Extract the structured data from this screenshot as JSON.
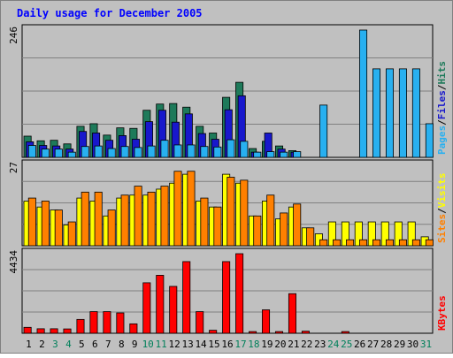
{
  "chart_data": [
    {
      "type": "bar",
      "title": "Daily usage for December 2005",
      "panel": "hits-files-pages",
      "y_max_label": "246",
      "legend": [
        "Pages",
        "Files",
        "Hits"
      ],
      "legend_separator": "/",
      "days": [
        "1",
        "2",
        "3",
        "4",
        "5",
        "6",
        "7",
        "8",
        "9",
        "10",
        "11",
        "12",
        "13",
        "14",
        "15",
        "16",
        "17",
        "18",
        "19",
        "20",
        "21",
        "22",
        "23",
        "24",
        "25",
        "26",
        "27",
        "28",
        "29",
        "30",
        "31"
      ],
      "ylim": [
        0,
        246
      ],
      "series": [
        {
          "name": "Hits",
          "color": "#1e7a5a",
          "values": [
            41,
            32,
            33,
            26,
            60,
            65,
            43,
            57,
            56,
            91,
            103,
            104,
            97,
            60,
            47,
            116,
            145,
            17,
            31,
            22,
            13,
            0,
            0,
            0,
            0,
            0,
            0,
            0,
            0,
            0,
            0
          ]
        },
        {
          "name": "Files",
          "color": "#1818cc",
          "values": [
            30,
            23,
            22,
            16,
            50,
            47,
            33,
            42,
            35,
            69,
            91,
            68,
            84,
            46,
            35,
            92,
            119,
            10,
            47,
            16,
            10,
            0,
            0,
            0,
            0,
            0,
            0,
            0,
            0,
            0,
            0
          ]
        },
        {
          "name": "Pages",
          "color": "#28b0f0",
          "values": [
            23,
            16,
            16,
            10,
            21,
            22,
            17,
            21,
            19,
            22,
            33,
            24,
            24,
            21,
            20,
            34,
            31,
            10,
            11,
            10,
            11,
            0,
            101,
            0,
            0,
            246,
            171,
            171,
            171,
            171,
            65
          ]
        }
      ],
      "weekend_days": [
        "3",
        "4",
        "10",
        "11",
        "17",
        "18",
        "24",
        "25",
        "31"
      ]
    },
    {
      "type": "bar",
      "panel": "visits-sites",
      "y_max_label": "27",
      "legend": [
        "Sites",
        "Visits"
      ],
      "legend_separator": "/",
      "ylim": [
        0,
        27
      ],
      "series": [
        {
          "name": "Visits",
          "color": "#ffff00",
          "values": [
            15,
            13,
            12,
            7,
            16,
            15,
            10,
            16,
            17,
            17,
            19,
            21,
            24,
            15,
            13,
            24,
            21,
            10,
            15,
            9,
            13,
            6,
            4,
            8,
            8,
            8,
            8,
            8,
            8,
            8,
            3
          ]
        },
        {
          "name": "Sites",
          "color": "#ff8000",
          "values": [
            16,
            15,
            12,
            8,
            18,
            18,
            12,
            17,
            20,
            18,
            20,
            25,
            25,
            16,
            13,
            23,
            22,
            10,
            17,
            11,
            14,
            6,
            2,
            2,
            2,
            2,
            2,
            2,
            2,
            2,
            2
          ]
        }
      ]
    },
    {
      "type": "bar",
      "panel": "kbytes",
      "y_max_label": "4434",
      "legend": [
        "KBytes"
      ],
      "ylim": [
        0,
        4434
      ],
      "series": [
        {
          "name": "KBytes",
          "color": "#ff0000",
          "values": [
            330,
            251,
            251,
            241,
            771,
            1206,
            1206,
            1133,
            524,
            2813,
            3231,
            2612,
            3994,
            1206,
            166,
            3994,
            4434,
            94,
            1305,
            94,
            2206,
            115,
            0,
            0,
            94,
            0,
            0,
            0,
            0,
            0,
            0
          ]
        }
      ]
    }
  ],
  "colors": {
    "background": "#c0c0c0",
    "title": "#0000ff",
    "grid": "#808080",
    "weekday_label": "#000000",
    "weekend_label": "#00805a"
  }
}
